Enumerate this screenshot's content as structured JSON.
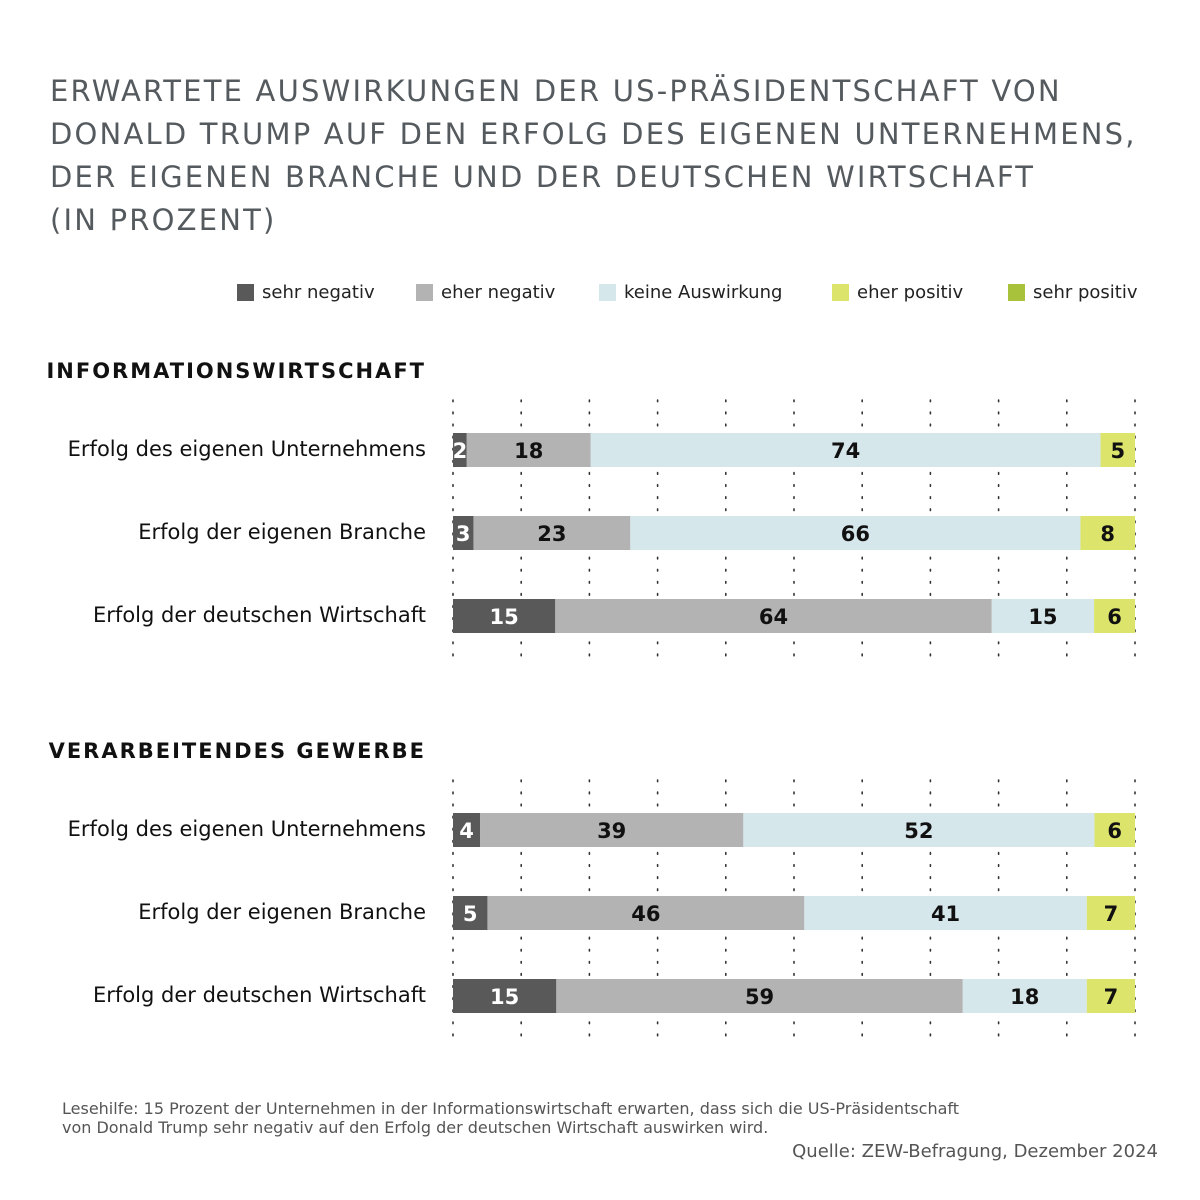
{
  "title_lines": [
    "ERWARTETE AUSWIRKUNGEN DER US-PRÄSIDENTSCHAFT VON",
    "DONALD TRUMP AUF DEN ERFOLG DES EIGENEN UNTERNEHMENS,",
    "DER EIGENEN BRANCHE UND DER DEUTSCHEN WIRTSCHAFT",
    "(IN PROZENT)"
  ],
  "legend": [
    {
      "label": "sehr negativ",
      "color": "#595959"
    },
    {
      "label": "eher negativ",
      "color": "#b3b3b3"
    },
    {
      "label": "keine Auswirkung",
      "color": "#d6e7ec"
    },
    {
      "label": "eher positiv",
      "color": "#dce46b"
    },
    {
      "label": "sehr positiv",
      "color": "#a9c23c"
    }
  ],
  "chart_data": [
    {
      "type": "bar",
      "orientation": "horizontal",
      "stacked": true,
      "title": "INFORMATIONSWIRTSCHAFT",
      "categories": [
        "Erfolg des eigenen Unternehmens",
        "Erfolg der eigenen Branche",
        "Erfolg der deutschen Wirtschaft"
      ],
      "series": [
        {
          "name": "sehr negativ",
          "values": [
            2,
            3,
            15
          ]
        },
        {
          "name": "eher negativ",
          "values": [
            18,
            23,
            64
          ]
        },
        {
          "name": "keine Auswirkung",
          "values": [
            74,
            66,
            15
          ]
        },
        {
          "name": "eher positiv",
          "values": [
            5,
            8,
            6
          ]
        },
        {
          "name": "sehr positiv",
          "values": [
            0,
            0,
            0
          ]
        }
      ],
      "xlim": [
        0,
        100
      ],
      "grid": true,
      "legend_position": "top"
    },
    {
      "type": "bar",
      "orientation": "horizontal",
      "stacked": true,
      "title": "VERARBEITENDES GEWERBE",
      "categories": [
        "Erfolg des eigenen Unternehmens",
        "Erfolg der eigenen Branche",
        "Erfolg der deutschen Wirtschaft"
      ],
      "series": [
        {
          "name": "sehr negativ",
          "values": [
            4,
            5,
            15
          ]
        },
        {
          "name": "eher negativ",
          "values": [
            39,
            46,
            59
          ]
        },
        {
          "name": "keine Auswirkung",
          "values": [
            52,
            41,
            18
          ]
        },
        {
          "name": "eher positiv",
          "values": [
            6,
            7,
            7
          ]
        },
        {
          "name": "sehr positiv",
          "values": [
            0,
            0,
            0
          ]
        }
      ],
      "xlim": [
        0,
        100
      ],
      "grid": true,
      "legend_position": "top"
    }
  ],
  "note_lines": [
    "Lesehilfe: 15 Prozent der Unternehmen in der Informationswirtschaft erwarten, dass sich die US-Präsidentschaft",
    "von Donald Trump sehr negativ auf den Erfolg der deutschen Wirtschaft auswirken wird."
  ],
  "source": "Quelle: ZEW-Befragung, Dezember 2024"
}
